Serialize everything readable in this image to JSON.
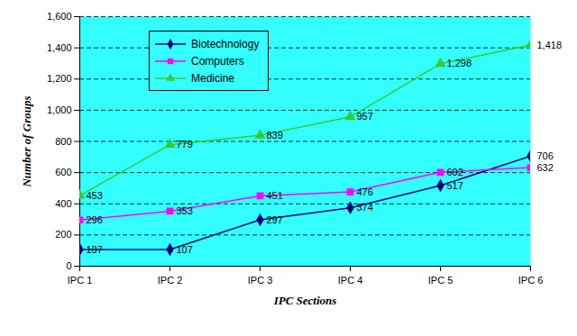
{
  "chart_data": {
    "type": "line",
    "y_label": "Number of Groups",
    "x_label": "IPC Sections",
    "categories": [
      "IPC 1",
      "IPC 2",
      "IPC 3",
      "IPC 4",
      "IPC 5",
      "IPC 6"
    ],
    "series": [
      {
        "name": "Biotechnology",
        "color": "#000080",
        "marker": "diamond",
        "values": [
          107,
          107,
          297,
          374,
          517,
          706
        ]
      },
      {
        "name": "Computers",
        "color": "#ff00ff",
        "marker": "square",
        "values": [
          296,
          353,
          451,
          476,
          602,
          632
        ]
      },
      {
        "name": "Medicine",
        "color": "#33cc33",
        "marker": "triangle",
        "values": [
          453,
          779,
          839,
          957,
          1298,
          1418
        ],
        "value_labels": [
          "453",
          "779",
          "839",
          "957",
          "1,298",
          "1,418"
        ]
      }
    ],
    "ylim": [
      0,
      1600
    ],
    "yticks": [
      0,
      200,
      400,
      600,
      800,
      {
        "value": 1000,
        "label": "1,000"
      },
      {
        "value": 1200,
        "label": "1,200"
      },
      {
        "value": 1400,
        "label": "1,400"
      },
      {
        "value": 1600,
        "label": "1,600"
      }
    ],
    "grid": true,
    "legend": "top-left",
    "data_labels": true
  }
}
